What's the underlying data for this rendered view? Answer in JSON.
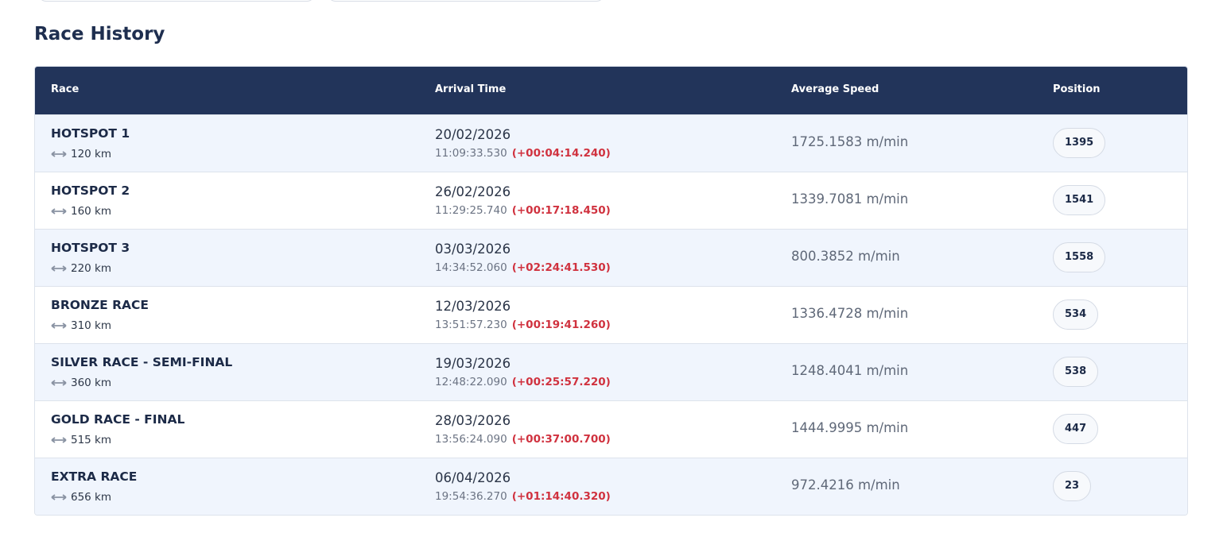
{
  "title": "Race History",
  "table": {
    "headers": [
      "Race",
      "Arrival Time",
      "Average Speed",
      "Position"
    ],
    "rows": [
      {
        "race": "HOTSPOT 1",
        "distance": "120 km",
        "date": "20/02/2026",
        "time": "11:09:33.530",
        "gap": "(+00:04:14.240)",
        "speed": "1725.1583 m/min",
        "position": "1395"
      },
      {
        "race": "HOTSPOT 2",
        "distance": "160 km",
        "date": "26/02/2026",
        "time": "11:29:25.740",
        "gap": "(+00:17:18.450)",
        "speed": "1339.7081 m/min",
        "position": "1541"
      },
      {
        "race": "HOTSPOT 3",
        "distance": "220 km",
        "date": "03/03/2026",
        "time": "14:34:52.060",
        "gap": "(+02:24:41.530)",
        "speed": "800.3852 m/min",
        "position": "1558"
      },
      {
        "race": "BRONZE RACE",
        "distance": "310 km",
        "date": "12/03/2026",
        "time": "13:51:57.230",
        "gap": "(+00:19:41.260)",
        "speed": "1336.4728 m/min",
        "position": "534"
      },
      {
        "race": "SILVER RACE - SEMI-FINAL",
        "distance": "360 km",
        "date": "19/03/2026",
        "time": "12:48:22.090",
        "gap": "(+00:25:57.220)",
        "speed": "1248.4041 m/min",
        "position": "538"
      },
      {
        "race": "GOLD RACE - FINAL",
        "distance": "515 km",
        "date": "28/03/2026",
        "time": "13:56:24.090",
        "gap": "(+00:37:00.700)",
        "speed": "1444.9995 m/min",
        "position": "447"
      },
      {
        "race": "EXTRA RACE",
        "distance": "656 km",
        "date": "06/04/2026",
        "time": "19:54:36.270",
        "gap": "(+01:14:40.320)",
        "speed": "972.4216 m/min",
        "position": "23"
      }
    ]
  }
}
